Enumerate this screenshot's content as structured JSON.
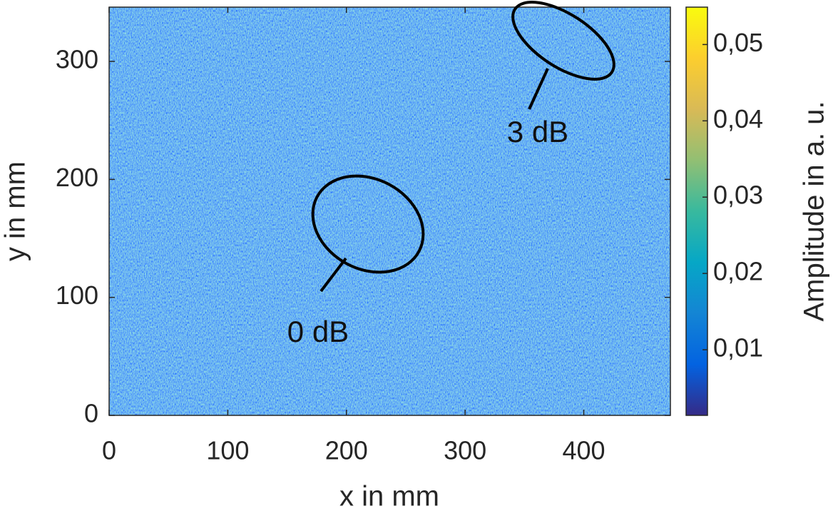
{
  "chart_data": {
    "type": "heatmap",
    "xlabel": "x in mm",
    "ylabel": "y in mm",
    "xlim": [
      0,
      473
    ],
    "ylim": [
      0,
      346
    ],
    "xticks": [
      0,
      100,
      200,
      300,
      400
    ],
    "yticks": [
      0,
      100,
      200,
      300
    ],
    "colorbar": {
      "label": "Amplitude in a. u.",
      "lim": [
        0.0014,
        0.0549
      ],
      "ticks": [
        {
          "value": 0.01,
          "label": "0,01"
        },
        {
          "value": 0.02,
          "label": "0,02"
        },
        {
          "value": 0.03,
          "label": "0,03"
        },
        {
          "value": 0.04,
          "label": "0,04"
        },
        {
          "value": 0.05,
          "label": "0,05"
        }
      ],
      "colors": [
        "#352a87",
        "#0363e1",
        "#1485d4",
        "#06a7c6",
        "#38b99e",
        "#92bf73",
        "#d9ba56",
        "#fcce2e",
        "#f9fb0e"
      ]
    },
    "annotations": [
      "0 dB",
      "3 dB"
    ]
  }
}
